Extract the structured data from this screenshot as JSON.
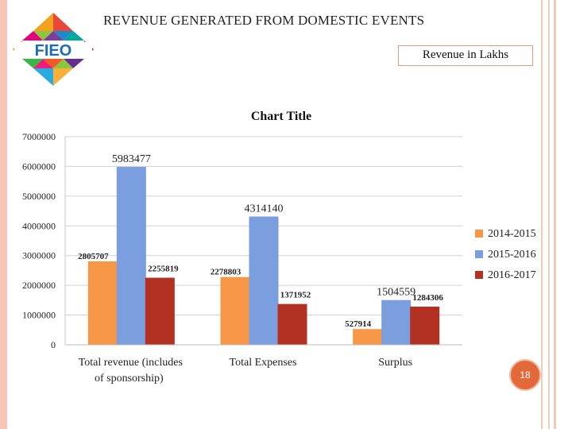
{
  "slide": {
    "title": "REVENUE GENERATED FROM DOMESTIC EVENTS",
    "unit_note": "Revenue in Lakhs",
    "logo_text": "FIEO",
    "page_number": "18"
  },
  "colors": {
    "frame": "#f6c7b6",
    "series": [
      "#f79646",
      "#7a9ede",
      "#b33122"
    ]
  },
  "chart_data": {
    "type": "bar",
    "title": "Chart Title",
    "xlabel": "",
    "ylabel": "",
    "ylim": [
      0,
      7000000
    ],
    "yticks": [
      "0",
      "1000000",
      "2000000",
      "3000000",
      "4000000",
      "5000000",
      "6000000",
      "7000000"
    ],
    "categories": [
      [
        "Total revenue (includes",
        "of sponsorship)"
      ],
      [
        "Total Expenses"
      ],
      [
        "Surplus"
      ]
    ],
    "series": [
      {
        "name": "2014-2015",
        "values": [
          2805707,
          2278803,
          527914
        ]
      },
      {
        "name": "2015-2016",
        "values": [
          5983477,
          4314140,
          1504559
        ]
      },
      {
        "name": "2016-2017",
        "values": [
          2255819,
          1371952,
          1284306
        ]
      }
    ],
    "legend": "right",
    "grid": true
  }
}
